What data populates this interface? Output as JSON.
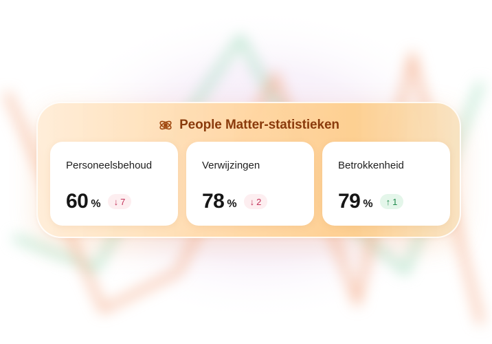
{
  "header": {
    "icon": "network-atom-icon",
    "title": "People Matter-statistieken"
  },
  "metrics": [
    {
      "label": "Personeelsbehoud",
      "value": "60",
      "unit": "%",
      "change": "7",
      "direction": "down",
      "arrow": "↓"
    },
    {
      "label": "Verwijzingen",
      "value": "78",
      "unit": "%",
      "change": "2",
      "direction": "down",
      "arrow": "↓"
    },
    {
      "label": "Betrokkenheid",
      "value": "79",
      "unit": "%",
      "change": "1",
      "direction": "up",
      "arrow": "↑"
    }
  ],
  "colors": {
    "title": "#8a3b0c",
    "down": "#c2315a",
    "up": "#1f8a4c",
    "bg_line_orange": "#f2a078",
    "bg_line_green": "#8fd3b0"
  }
}
